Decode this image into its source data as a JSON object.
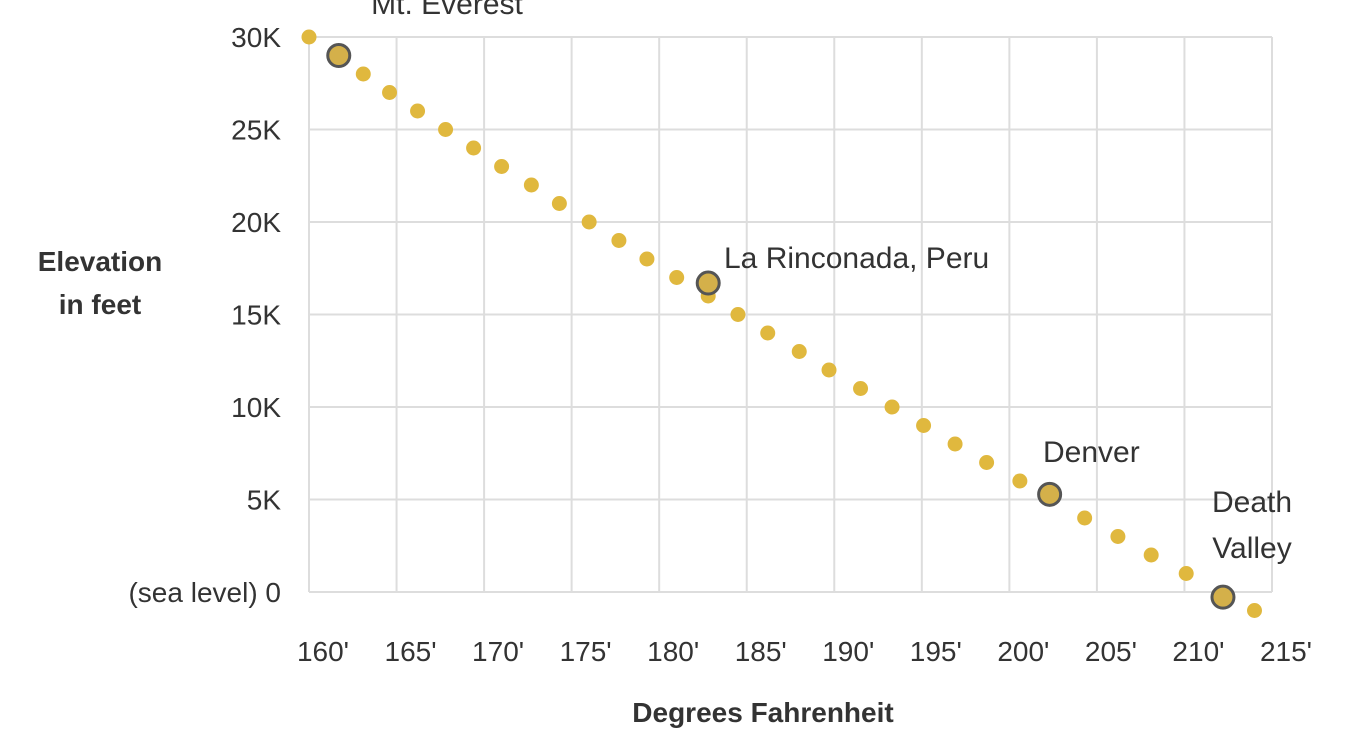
{
  "chart_data": {
    "type": "scatter",
    "xlabel": "Degrees Fahrenheit",
    "ylabel_lines": [
      "Elevation",
      "in feet"
    ],
    "xlim": [
      160,
      215
    ],
    "ylim": [
      0,
      30000
    ],
    "x_ticks": [
      160,
      165,
      170,
      175,
      180,
      185,
      190,
      195,
      200,
      205,
      210,
      215
    ],
    "x_tick_labels": [
      "160'",
      "165'",
      "170'",
      "175'",
      "180'",
      "185'",
      "190'",
      "195'",
      "200'",
      "205'",
      "210'",
      "215'"
    ],
    "y_ticks": [
      0,
      5000,
      10000,
      15000,
      20000,
      25000,
      30000
    ],
    "y_tick_labels": [
      "(sea level) 0",
      "5K",
      "10K",
      "15K",
      "20K",
      "25K",
      "30K"
    ],
    "grid": true,
    "dot_color": "#e0b83e",
    "points": [
      {
        "x": 160.0,
        "y": 30000
      },
      {
        "x": 163.1,
        "y": 28000
      },
      {
        "x": 164.6,
        "y": 27000
      },
      {
        "x": 166.2,
        "y": 26000
      },
      {
        "x": 167.8,
        "y": 25000
      },
      {
        "x": 169.4,
        "y": 24000
      },
      {
        "x": 171.0,
        "y": 23000
      },
      {
        "x": 172.7,
        "y": 22000
      },
      {
        "x": 174.3,
        "y": 21000
      },
      {
        "x": 176.0,
        "y": 20000
      },
      {
        "x": 177.7,
        "y": 19000
      },
      {
        "x": 179.3,
        "y": 18000
      },
      {
        "x": 181.0,
        "y": 17000
      },
      {
        "x": 182.8,
        "y": 16000
      },
      {
        "x": 184.5,
        "y": 15000
      },
      {
        "x": 186.2,
        "y": 14000
      },
      {
        "x": 188.0,
        "y": 13000
      },
      {
        "x": 189.7,
        "y": 12000
      },
      {
        "x": 191.5,
        "y": 11000
      },
      {
        "x": 193.3,
        "y": 10000
      },
      {
        "x": 195.1,
        "y": 9000
      },
      {
        "x": 196.9,
        "y": 8000
      },
      {
        "x": 198.7,
        "y": 7000
      },
      {
        "x": 200.6,
        "y": 6000
      },
      {
        "x": 204.3,
        "y": 4000
      },
      {
        "x": 206.2,
        "y": 3000
      },
      {
        "x": 208.1,
        "y": 2000
      },
      {
        "x": 210.1,
        "y": 1000
      },
      {
        "x": 214.0,
        "y": -1000
      }
    ],
    "highlights": [
      {
        "label": "Mt. Everest",
        "x": 161.7,
        "y": 29000
      },
      {
        "label": "La Rinconada, Peru",
        "x": 182.8,
        "y": 16700
      },
      {
        "label": "Denver",
        "x": 202.3,
        "y": 5280
      },
      {
        "label": "Death Valley",
        "label_lines": [
          "Death",
          "Valley"
        ],
        "x": 212.2,
        "y": -280
      }
    ]
  }
}
